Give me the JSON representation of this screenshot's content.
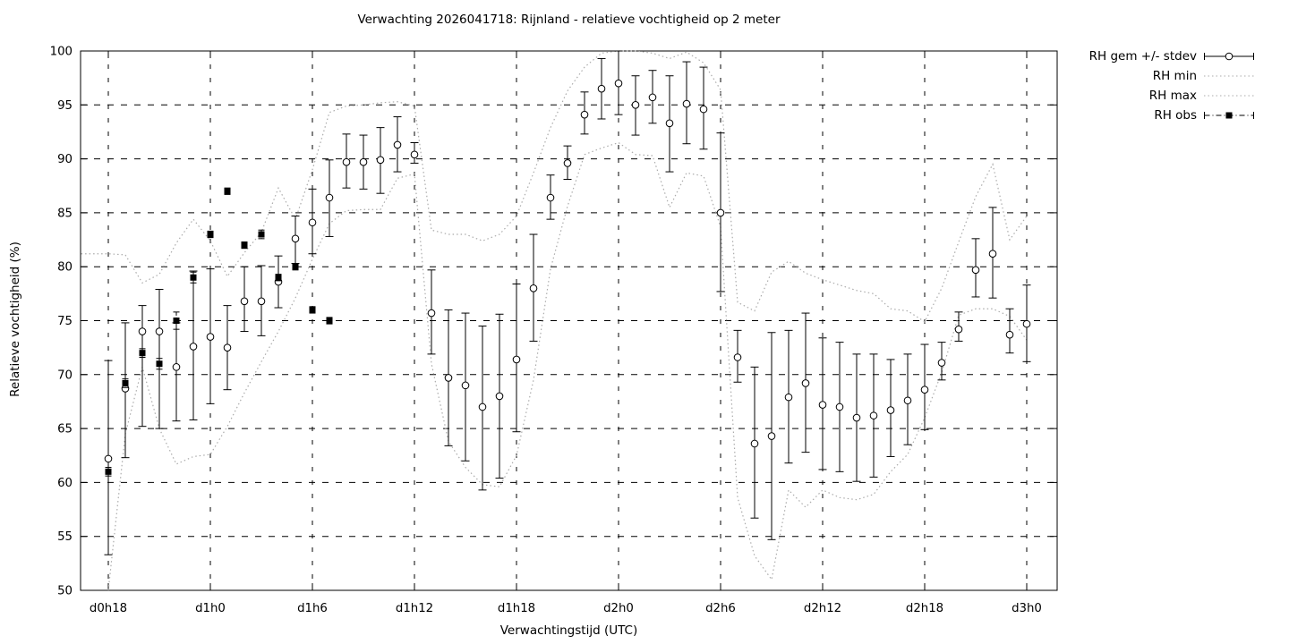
{
  "window": {
    "background": "#ffffff"
  },
  "chart": {
    "colors": {
      "foreground": "#000000",
      "minmax_gray": "#ababab",
      "background": "#ffffff"
    }
  },
  "legend": {
    "entries": [
      {
        "label": "RH gem +/- stdev",
        "style": "errorbar-open-circle"
      },
      {
        "label": "RH min",
        "style": "dotted-gray"
      },
      {
        "label": "RH max",
        "style": "dotted-gray"
      },
      {
        "label": "RH obs",
        "style": "dashdot-filled-square"
      }
    ]
  },
  "chart_data": {
    "type": "line",
    "title": "Verwachting 2026041718: Rijnland - relatieve vochtigheid op 2 meter",
    "xlabel": "Verwachtingstijd (UTC)",
    "ylabel": "Relatieve vochtigheid (%)",
    "ylim": [
      50,
      100
    ],
    "y_ticks": [
      50,
      55,
      60,
      65,
      70,
      75,
      80,
      85,
      90,
      95,
      100
    ],
    "x_tick_labels": [
      "d0h18",
      "d1h0",
      "d1h6",
      "d1h12",
      "d1h18",
      "d2h0",
      "d2h6",
      "d2h12",
      "d2h18",
      "d3h0"
    ],
    "x_tick_hours": [
      0,
      6,
      12,
      18,
      24,
      30,
      36,
      42,
      48,
      54
    ],
    "grid": true,
    "legend_position": "top-right-outside",
    "series": [
      {
        "name": "RH gem +/- stdev",
        "style": "errorbar-circle",
        "hour_start": 0,
        "hour_step": 1,
        "mean": [
          62.2,
          68.7,
          74.0,
          74.0,
          70.7,
          72.6,
          73.5,
          72.5,
          76.8,
          76.8,
          78.6,
          82.6,
          84.1,
          86.4,
          89.7,
          89.7,
          89.9,
          91.3,
          90.4,
          75.7,
          69.7,
          69.0,
          67.0,
          68.0,
          71.4,
          78.0,
          86.4,
          89.6,
          94.1,
          96.5,
          97.0,
          95.0,
          95.7,
          93.3,
          95.1,
          94.6,
          85.0,
          71.6,
          63.6,
          64.3,
          67.9,
          69.2,
          67.2,
          67.0,
          66.0,
          66.2,
          66.7,
          67.6,
          68.6,
          71.1,
          74.2,
          79.7,
          81.2,
          73.7,
          74.7
        ],
        "upper": [
          71.3,
          74.8,
          76.4,
          77.9,
          74.8,
          79.6,
          79.8,
          76.4,
          80.0,
          80.1,
          81.0,
          84.7,
          87.2,
          89.9,
          92.3,
          92.2,
          92.9,
          93.9,
          91.5,
          79.7,
          76.0,
          75.7,
          74.5,
          75.6,
          78.4,
          83.0,
          88.5,
          91.2,
          96.2,
          99.3,
          100.0,
          97.7,
          98.2,
          97.7,
          99.0,
          98.5,
          92.4,
          74.1,
          70.7,
          73.9,
          74.1,
          75.7,
          73.4,
          73.0,
          71.9,
          71.9,
          71.4,
          71.9,
          72.8,
          73.0,
          75.8,
          82.6,
          85.5,
          76.1,
          78.3
        ],
        "lower": [
          53.3,
          62.3,
          65.2,
          65.0,
          65.7,
          65.8,
          67.3,
          68.6,
          74.0,
          73.6,
          76.2,
          80.3,
          81.2,
          82.8,
          87.3,
          87.2,
          86.8,
          88.8,
          89.6,
          71.9,
          63.4,
          62.0,
          59.3,
          60.4,
          64.7,
          73.1,
          84.4,
          88.1,
          92.3,
          93.7,
          94.1,
          92.2,
          93.3,
          88.8,
          91.4,
          90.9,
          77.7,
          69.3,
          56.7,
          54.7,
          61.8,
          62.8,
          61.2,
          61.0,
          60.1,
          60.5,
          62.4,
          63.5,
          64.9,
          69.5,
          73.1,
          77.2,
          77.1,
          72.0,
          71.2
        ]
      },
      {
        "name": "RH min",
        "style": "dotted",
        "hour_start": 0,
        "hour_step": 1,
        "values": [
          50.0,
          64.5,
          70.7,
          65.0,
          61.7,
          62.4,
          62.6,
          65.2,
          68.3,
          71.2,
          74.0,
          77.1,
          80.7,
          84.0,
          85.2,
          85.3,
          85.3,
          88.2,
          88.6,
          71.0,
          63.8,
          61.4,
          59.8,
          59.6,
          62.5,
          69.5,
          79.8,
          85.6,
          90.4,
          91.0,
          91.5,
          90.4,
          90.3,
          85.5,
          88.7,
          88.4,
          83.7,
          58.6,
          53.2,
          51.0,
          59.3,
          57.7,
          59.3,
          58.6,
          58.4,
          58.9,
          61.0,
          62.6,
          66.0,
          70.2,
          75.5,
          76.1,
          76.1,
          75.4,
          73.2
        ]
      },
      {
        "name": "RH max",
        "style": "dotted",
        "hour_start": 0,
        "hour_step": 1,
        "pre_point": {
          "hour": -1.6,
          "value": 81.2
        },
        "values": [
          81.2,
          81.1,
          78.5,
          79.3,
          82.2,
          84.4,
          82.4,
          79.1,
          81.3,
          83.2,
          87.3,
          84.4,
          89.0,
          94.3,
          94.9,
          95.0,
          95.2,
          95.3,
          94.9,
          83.4,
          83.0,
          83.0,
          82.4,
          83.0,
          84.7,
          88.7,
          92.9,
          96.3,
          98.5,
          99.8,
          100.0,
          100.0,
          99.8,
          99.3,
          99.9,
          98.9,
          96.4,
          76.7,
          75.9,
          79.5,
          80.5,
          79.4,
          78.8,
          78.3,
          77.8,
          77.5,
          76.1,
          75.9,
          74.9,
          78.0,
          82.3,
          86.5,
          89.5,
          82.5,
          84.7
        ]
      },
      {
        "name": "RH obs",
        "style": "square-errorbar-dashdot",
        "hour_start": 0,
        "hour_step": 1,
        "values": [
          61.0,
          69.2,
          72.0,
          71.0,
          75.0,
          79.0,
          83.0,
          87.0,
          82.0,
          83.0,
          79.0,
          80.0,
          76.0,
          75.0
        ],
        "err": [
          0.4,
          0.4,
          0.4,
          0.5,
          0.8,
          0.5,
          0.3,
          0.3,
          0.3,
          0.4,
          0.3,
          0.3,
          0.3,
          0.3
        ]
      }
    ]
  }
}
